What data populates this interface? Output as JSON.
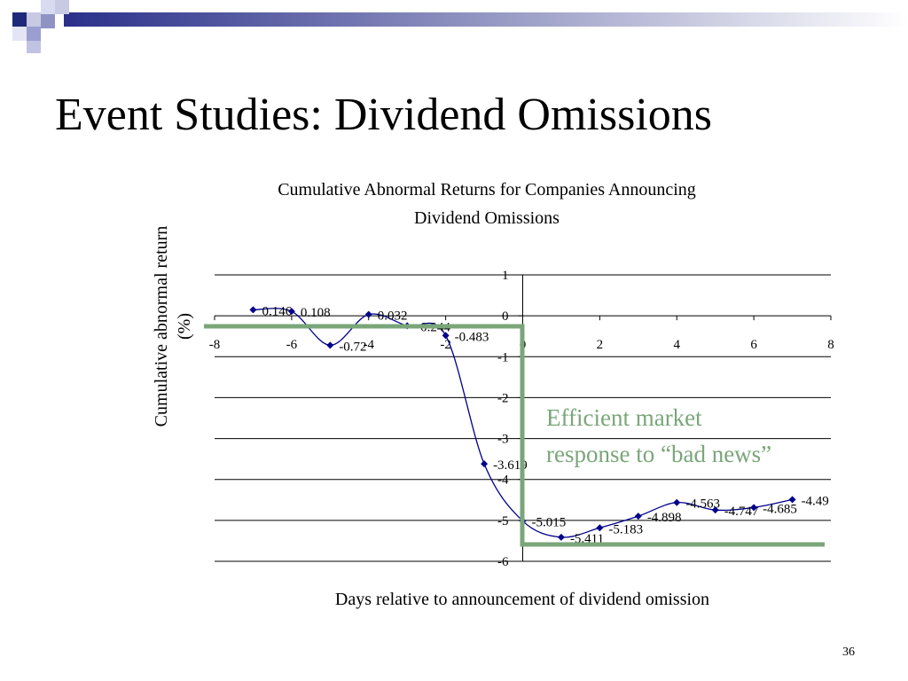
{
  "slide": {
    "title": "Event Studies: Dividend Omissions",
    "page_number": "36"
  },
  "annotation": {
    "line1": "Efficient market",
    "line2": "response to “bad news”",
    "color": "#7aa67a"
  },
  "chart_data": {
    "type": "line",
    "title_lines": [
      "Cumulative Abnormal Returns for Companies Announcing",
      "Dividend Omissions"
    ],
    "xlabel": "Days relative to announcement of dividend omission",
    "ylabel_lines": [
      "Cumulative abnormal return",
      "(%)"
    ],
    "xlim": [
      -8,
      8
    ],
    "ylim": [
      -6,
      1
    ],
    "x_ticks": [
      -8,
      -6,
      -4,
      -2,
      0,
      2,
      4,
      6,
      8
    ],
    "y_ticks": [
      1,
      0,
      -1,
      -2,
      -3,
      -4,
      -5,
      -6
    ],
    "grid": true,
    "line_color": "#00008b",
    "x": [
      -7,
      -6,
      -5,
      -4,
      -3,
      -2,
      -1,
      0,
      1,
      2,
      3,
      4,
      5,
      6,
      7
    ],
    "y": [
      0.146,
      0.108,
      -0.72,
      0.032,
      -0.244,
      -0.483,
      -3.619,
      -5.015,
      -5.411,
      -5.183,
      -4.898,
      -4.563,
      -4.747,
      -4.685,
      -4.49
    ],
    "labels": [
      "0.146",
      "0.108",
      "-0.72",
      "0.032",
      "-0.244",
      "-0.483",
      "-3.619",
      "-5.015",
      "-5.411",
      "-5.183",
      "-4.898",
      "-4.563",
      "-4.747",
      "-4.685",
      "-4.49"
    ]
  }
}
